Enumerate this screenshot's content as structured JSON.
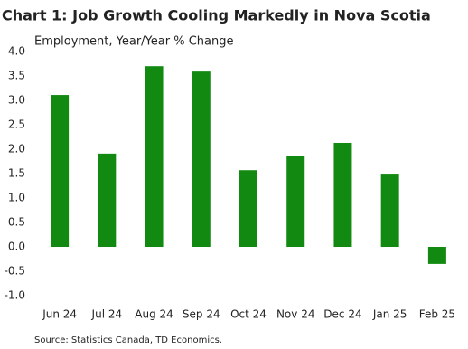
{
  "chart_data": {
    "type": "bar",
    "title": "Chart 1: Job Growth Cooling Markedly in Nova Scotia",
    "subtitle": "Employment, Year/Year % Change",
    "source": "Source: Statistics Canada, TD Economics.",
    "categories": [
      "Jun 24",
      "Jul 24",
      "Aug 24",
      "Sep 24",
      "Oct 24",
      "Nov 24",
      "Dec 24",
      "Jan 25",
      "Feb 25"
    ],
    "values": [
      3.11,
      1.91,
      3.7,
      3.59,
      1.57,
      1.87,
      2.13,
      1.48,
      -0.35
    ],
    "color": "#128a12",
    "ylim": [
      -1,
      4
    ],
    "yticks": [
      {
        "value": 4,
        "label": "4.0"
      },
      3.5,
      {
        "value": 3,
        "label": "3.0"
      },
      2.5,
      {
        "value": 2,
        "label": "2.0"
      },
      1.5,
      {
        "value": 1,
        "label": "1.0"
      },
      0.5,
      {
        "value": 0,
        "label": "0.0"
      },
      -0.5,
      {
        "value": -1,
        "label": "-1.0"
      }
    ],
    "grid": false
  }
}
